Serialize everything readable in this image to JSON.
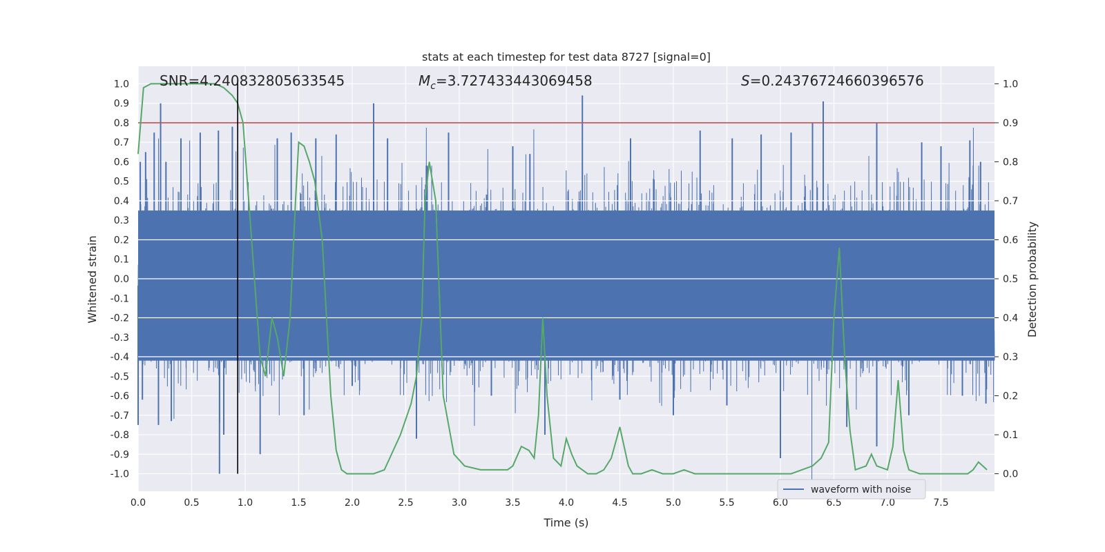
{
  "chart_data": {
    "type": "line",
    "title": "stats at each timestep for test data 8727 [signal=0]",
    "xlabel": "Time (s)",
    "ylabel": "Whitened strain",
    "y2label": "Detection probability",
    "xlim": [
      0.0,
      8.0
    ],
    "ylim": [
      -1.09,
      1.09
    ],
    "y2lim": [
      -0.045,
      1.045
    ],
    "x_ticks": [
      "0.0",
      "0.5",
      "1.0",
      "1.5",
      "2.0",
      "2.5",
      "3.0",
      "3.5",
      "4.0",
      "4.5",
      "5.0",
      "5.5",
      "6.0",
      "6.5",
      "7.0",
      "7.5"
    ],
    "y_ticks": [
      "1.0",
      "0.9",
      "0.8",
      "0.7",
      "0.6",
      "0.5",
      "0.4",
      "0.3",
      "0.2",
      "0.1",
      "0.0",
      "-0.1",
      "-0.2",
      "-0.3",
      "-0.4",
      "-0.5",
      "-0.6",
      "-0.7",
      "-0.8",
      "-0.9",
      "-1.0"
    ],
    "y2_ticks": [
      "1.0",
      "0.9",
      "0.8",
      "0.7",
      "0.6",
      "0.5",
      "0.4",
      "0.3",
      "0.2",
      "0.1",
      "0.0"
    ],
    "grid": true,
    "annotations": {
      "snr": "SNR=4.240832805633545",
      "mc_symbol": "M",
      "mc_sub": "c",
      "mc_value": "=3.727433443069458",
      "s_symbol": "S",
      "s_value": "=0.24376724660396576"
    },
    "threshold": 0.9,
    "vline_x": 0.93,
    "waveform": {
      "name": "waveform with noise",
      "color": "#4c72b0",
      "sample_rate": 512,
      "typical_upper": 0.35,
      "typical_lower": -0.42,
      "peaks": [
        {
          "x": 0.02,
          "y": 0.6
        },
        {
          "x": 0.07,
          "y": 0.65
        },
        {
          "x": 0.15,
          "y": 0.75
        },
        {
          "x": 0.21,
          "y": 0.9
        },
        {
          "x": 0.26,
          "y": 0.6
        },
        {
          "x": 0.4,
          "y": 0.72
        },
        {
          "x": 0.58,
          "y": 0.75
        },
        {
          "x": 0.75,
          "y": 0.76
        },
        {
          "x": 0.88,
          "y": 0.78
        },
        {
          "x": 1.3,
          "y": 0.72
        },
        {
          "x": 1.43,
          "y": 0.75
        },
        {
          "x": 1.66,
          "y": 0.72
        },
        {
          "x": 1.85,
          "y": 0.74
        },
        {
          "x": 2.2,
          "y": 0.9
        },
        {
          "x": 2.33,
          "y": 0.72
        },
        {
          "x": 2.7,
          "y": 0.58
        },
        {
          "x": 2.9,
          "y": 0.75
        },
        {
          "x": 3.5,
          "y": 0.68
        },
        {
          "x": 3.66,
          "y": 0.64
        },
        {
          "x": 4.15,
          "y": 0.94
        },
        {
          "x": 4.6,
          "y": 0.72
        },
        {
          "x": 5.25,
          "y": 0.76
        },
        {
          "x": 5.55,
          "y": 0.72
        },
        {
          "x": 5.82,
          "y": 0.74
        },
        {
          "x": 6.1,
          "y": 0.75
        },
        {
          "x": 6.3,
          "y": 0.8
        },
        {
          "x": 6.4,
          "y": 0.91
        },
        {
          "x": 6.9,
          "y": 0.8
        },
        {
          "x": 7.32,
          "y": 0.7
        },
        {
          "x": 7.5,
          "y": 0.68
        },
        {
          "x": 7.77,
          "y": 0.71
        },
        {
          "x": 7.87,
          "y": 0.6
        },
        {
          "x": 0.0,
          "y": -0.75
        },
        {
          "x": 0.04,
          "y": -0.62
        },
        {
          "x": 0.19,
          "y": -0.75
        },
        {
          "x": 0.31,
          "y": -0.73
        },
        {
          "x": 0.76,
          "y": -1.0
        },
        {
          "x": 0.8,
          "y": -0.8
        },
        {
          "x": 1.14,
          "y": -0.9
        },
        {
          "x": 1.55,
          "y": -0.7
        },
        {
          "x": 2.0,
          "y": -0.55
        },
        {
          "x": 2.6,
          "y": -0.82
        },
        {
          "x": 3.3,
          "y": -0.6
        },
        {
          "x": 3.8,
          "y": -0.8
        },
        {
          "x": 4.5,
          "y": -0.62
        },
        {
          "x": 5.0,
          "y": -0.7
        },
        {
          "x": 5.5,
          "y": -0.65
        },
        {
          "x": 6.0,
          "y": -0.92
        },
        {
          "x": 6.62,
          "y": -0.76
        },
        {
          "x": 6.9,
          "y": -0.86
        },
        {
          "x": 7.2,
          "y": -0.7
        },
        {
          "x": 7.7,
          "y": -0.6
        },
        {
          "x": 7.92,
          "y": -0.64
        }
      ]
    },
    "probability": {
      "color": "#55a868",
      "x": [
        0.0,
        0.05,
        0.12,
        0.2,
        0.3,
        0.4,
        0.5,
        0.6,
        0.72,
        0.8,
        0.88,
        0.93,
        0.98,
        1.02,
        1.06,
        1.1,
        1.14,
        1.19,
        1.25,
        1.3,
        1.36,
        1.42,
        1.47,
        1.5,
        1.55,
        1.6,
        1.65,
        1.72,
        1.8,
        1.85,
        1.9,
        1.95,
        2.0,
        2.1,
        2.2,
        2.3,
        2.35,
        2.45,
        2.55,
        2.6,
        2.65,
        2.68,
        2.72,
        2.78,
        2.85,
        2.95,
        3.05,
        3.2,
        3.35,
        3.45,
        3.5,
        3.58,
        3.65,
        3.7,
        3.74,
        3.78,
        3.82,
        3.88,
        3.95,
        4.0,
        4.05,
        4.1,
        4.2,
        4.28,
        4.35,
        4.42,
        4.5,
        4.58,
        4.62,
        4.7,
        4.8,
        4.9,
        5.0,
        5.1,
        5.2,
        5.3,
        5.4,
        5.5,
        5.6,
        5.7,
        5.8,
        5.9,
        6.0,
        6.1,
        6.2,
        6.3,
        6.38,
        6.45,
        6.5,
        6.55,
        6.6,
        6.65,
        6.7,
        6.8,
        6.85,
        6.9,
        7.0,
        7.05,
        7.1,
        7.15,
        7.2,
        7.3,
        7.4,
        7.5,
        7.6,
        7.7,
        7.75,
        7.8,
        7.85,
        7.93
      ],
      "y": [
        0.82,
        0.99,
        1.0,
        1.0,
        1.0,
        1.0,
        1.0,
        1.0,
        1.0,
        0.99,
        0.97,
        0.95,
        0.9,
        0.75,
        0.6,
        0.45,
        0.3,
        0.25,
        0.4,
        0.35,
        0.25,
        0.4,
        0.7,
        0.85,
        0.84,
        0.8,
        0.75,
        0.6,
        0.2,
        0.06,
        0.01,
        0.0,
        0.0,
        0.0,
        0.0,
        0.01,
        0.04,
        0.1,
        0.18,
        0.25,
        0.4,
        0.7,
        0.8,
        0.7,
        0.2,
        0.05,
        0.02,
        0.01,
        0.01,
        0.01,
        0.02,
        0.07,
        0.06,
        0.04,
        0.15,
        0.4,
        0.2,
        0.04,
        0.02,
        0.09,
        0.05,
        0.02,
        0.0,
        0.0,
        0.01,
        0.04,
        0.12,
        0.02,
        0.0,
        0.0,
        0.01,
        0.0,
        0.0,
        0.01,
        0.0,
        0.0,
        0.0,
        0.0,
        0.0,
        0.0,
        0.0,
        0.0,
        0.0,
        0.0,
        0.01,
        0.02,
        0.04,
        0.08,
        0.4,
        0.58,
        0.3,
        0.11,
        0.01,
        0.02,
        0.05,
        0.02,
        0.01,
        0.07,
        0.24,
        0.06,
        0.01,
        0.0,
        0.0,
        0.0,
        0.0,
        0.0,
        0.0,
        0.01,
        0.03,
        0.01
      ]
    },
    "legend": {
      "placement": "lower-right",
      "entry": "waveform with noise"
    }
  }
}
